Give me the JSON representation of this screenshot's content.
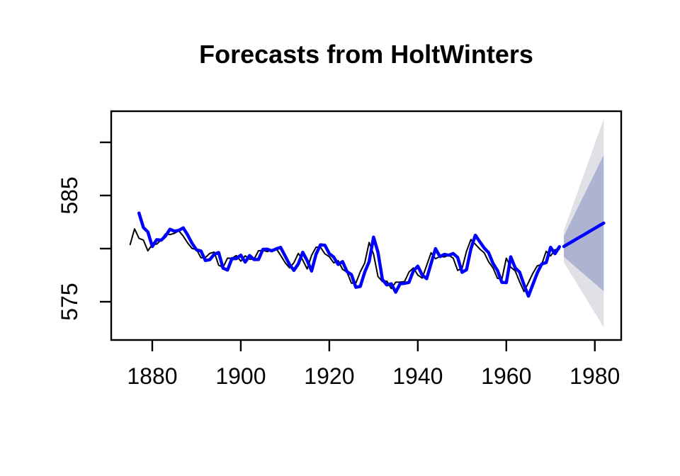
{
  "window": {
    "background": "#FFFFFF"
  },
  "chart_data": {
    "type": "line",
    "title": "Forecasts from HoltWinters",
    "subtitle": "",
    "grid": false,
    "legend_position": "none",
    "xlabel": "",
    "ylabel": "",
    "x_axis": {
      "lim": [
        1870.72,
        1985.96
      ],
      "ticks": [
        1880,
        1900,
        1920,
        1940,
        1960,
        1980
      ]
    },
    "y_axis": {
      "lim": [
        571.4,
        592.93
      ],
      "ticks": [
        {
          "value": 575,
          "label": "575"
        },
        {
          "value": 580,
          "label": ""
        },
        {
          "value": 585,
          "label": "585"
        },
        {
          "value": 590,
          "label": ""
        }
      ]
    },
    "series": [
      {
        "name": "observed",
        "color": "#000000",
        "line_width": 2,
        "start_x": 1875,
        "x_step": 1,
        "values": [
          580.38,
          581.86,
          580.97,
          580.8,
          579.79,
          580.39,
          580.42,
          580.82,
          581.4,
          581.32,
          581.44,
          581.68,
          581.17,
          580.53,
          580.01,
          579.91,
          579.14,
          579.16,
          579.55,
          579.67,
          578.44,
          578.24,
          579.1,
          579.09,
          579.35,
          578.82,
          579.32,
          579.01,
          579.0,
          579.8,
          579.83,
          579.72,
          579.89,
          580.01,
          579.37,
          578.69,
          578.19,
          578.67,
          579.55,
          578.92,
          578.09,
          579.37,
          580.13,
          580.14,
          579.51,
          579.24,
          578.66,
          578.86,
          578.05,
          577.79,
          576.75,
          576.75,
          577.82,
          578.64,
          580.58,
          579.48,
          577.38,
          576.9,
          576.94,
          576.24,
          576.84,
          576.85,
          576.9,
          577.79,
          578.18,
          577.51,
          577.23,
          578.42,
          579.61,
          579.05,
          579.26,
          579.22,
          579.38,
          579.1,
          577.95,
          578.12,
          579.75,
          580.85,
          580.41,
          579.96,
          579.61,
          578.76,
          578.18,
          577.21,
          577.13,
          579.1,
          578.25,
          577.91,
          576.89,
          575.96,
          576.8,
          577.68,
          578.38,
          578.52,
          579.74,
          579.31,
          579.89,
          579.96
        ]
      },
      {
        "name": "fitted-holtwinters",
        "color": "#0000FF",
        "line_width": 4.5,
        "start_x": 1877,
        "x_step": 1,
        "values": [
          583.34,
          581.98,
          581.57,
          580.2,
          580.84,
          580.79,
          581.19,
          581.82,
          581.64,
          581.72,
          581.95,
          581.28,
          580.49,
          579.88,
          579.78,
          578.88,
          578.96,
          579.47,
          579.63,
          578.16,
          577.98,
          579.06,
          579.06,
          579.38,
          578.73,
          579.35,
          578.97,
          578.97,
          579.93,
          579.94,
          579.79,
          579.98,
          580.11,
          579.32,
          578.51,
          577.95,
          578.57,
          579.65,
          578.87,
          577.89,
          579.46,
          580.36,
          580.32,
          579.53,
          579.2,
          578.51,
          578.78,
          577.83,
          577.56,
          576.36,
          576.44,
          577.78,
          578.77,
          581.08,
          579.66,
          577.1,
          576.58,
          576.69,
          575.9,
          576.69,
          576.73,
          576.82,
          577.9,
          578.35,
          577.51,
          577.17,
          578.61,
          580.0,
          579.25,
          579.46,
          579.38,
          579.54,
          579.17,
          577.77,
          578.01,
          579.99,
          581.26,
          580.65,
          580.06,
          579.62,
          578.6,
          577.94,
          576.82,
          576.8,
          579.23,
          578.19,
          577.79,
          576.59,
          575.53,
          576.63,
          577.72,
          578.55,
          578.68,
          580.12,
          579.52,
          580.18
        ]
      },
      {
        "name": "forecast-mean",
        "color": "#0000FF",
        "line_width": 4.5,
        "start_x": 1973,
        "x_step": 1,
        "values": [
          580.2,
          580.45,
          580.69,
          580.94,
          581.18,
          581.42,
          581.67,
          581.91,
          582.16,
          582.4
        ]
      }
    ],
    "intervals": [
      {
        "name": "95",
        "color": "#E0E0E7",
        "start_x": 1973,
        "x_step": 1,
        "upper": [
          581.7,
          582.87,
          584.03,
          585.21,
          586.37,
          587.53,
          588.7,
          589.87,
          591.04,
          592.2
        ],
        "lower": [
          578.7,
          578.03,
          577.35,
          576.67,
          575.99,
          575.31,
          574.64,
          573.95,
          573.28,
          572.6
        ]
      },
      {
        "name": "80",
        "color": "#AEB3D2",
        "start_x": 1973,
        "x_step": 1,
        "upper": [
          581.18,
          582.03,
          582.87,
          583.73,
          584.57,
          585.41,
          586.26,
          587.11,
          587.96,
          588.8
        ],
        "lower": [
          579.22,
          578.87,
          578.51,
          578.15,
          577.79,
          577.43,
          577.08,
          576.71,
          576.36,
          576.0
        ]
      }
    ]
  }
}
